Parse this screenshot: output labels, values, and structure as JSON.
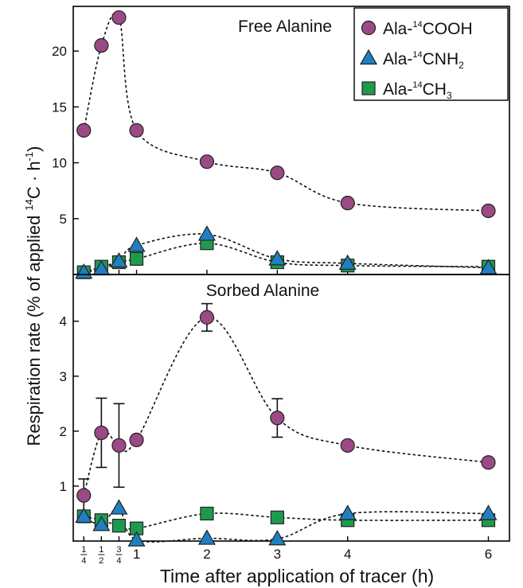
{
  "figure": {
    "ylabel_main": "Respiration rate (% of applied ",
    "ylabel_iso": "14",
    "ylabel_tail": "C · h",
    "ylabel_exp": "-1",
    "ylabel_close": ")",
    "xlabel": "Time after application of tracer (h)"
  },
  "legend": {
    "placement": "top-right",
    "items": [
      {
        "prefix": "Ala-",
        "iso": "14",
        "main": "COOH",
        "sub": "",
        "marker": "circle",
        "color": "#9b4a85"
      },
      {
        "prefix": "Ala-",
        "iso": "14",
        "main": "CNH",
        "sub": "2",
        "marker": "triangle",
        "color": "#1f7fc0"
      },
      {
        "prefix": "Ala-",
        "iso": "14",
        "main": "CH",
        "sub": "3",
        "marker": "square",
        "color": "#1e9a4d"
      }
    ]
  },
  "x_ticks": [
    {
      "value": 0.25,
      "kind": "fraction",
      "num": "1",
      "den": "4"
    },
    {
      "value": 0.5,
      "kind": "fraction",
      "num": "1",
      "den": "2"
    },
    {
      "value": 0.75,
      "kind": "fraction",
      "num": "3",
      "den": "4"
    },
    {
      "value": 1,
      "kind": "text",
      "label": "1"
    },
    {
      "value": 2,
      "kind": "text",
      "label": "2"
    },
    {
      "value": 3,
      "kind": "text",
      "label": "3"
    },
    {
      "value": 4,
      "kind": "text",
      "label": "4"
    },
    {
      "value": 6,
      "kind": "text",
      "label": "6"
    }
  ],
  "chart_data": [
    {
      "type": "scatter",
      "title": "Free Alanine",
      "xlim": [
        0.1,
        6.3
      ],
      "ylim": [
        0,
        24
      ],
      "yticks": [
        5,
        10,
        15,
        20
      ],
      "grid": false,
      "series": [
        {
          "name": "Ala-14COOH",
          "marker": "circle",
          "color": "#9b4a85",
          "x": [
            0.25,
            0.5,
            0.75,
            1,
            2,
            3,
            4,
            6
          ],
          "y": [
            12.9,
            20.5,
            23.0,
            12.9,
            10.1,
            9.1,
            6.4,
            5.7
          ]
        },
        {
          "name": "Ala-14CNH2",
          "marker": "triangle",
          "color": "#1f7fc0",
          "x": [
            0.25,
            0.5,
            0.75,
            1,
            2,
            3,
            4,
            6
          ],
          "y": [
            0.2,
            0.5,
            1.2,
            2.6,
            3.6,
            1.4,
            1.0,
            0.6
          ]
        },
        {
          "name": "Ala-14CH3",
          "marker": "square",
          "color": "#1e9a4d",
          "x": [
            0.25,
            0.5,
            0.75,
            1,
            2,
            3,
            4,
            6
          ],
          "y": [
            0.2,
            0.7,
            1.1,
            1.4,
            2.8,
            1.1,
            0.8,
            0.7
          ]
        }
      ]
    },
    {
      "type": "scatter",
      "title": "Sorbed Alanine",
      "xlim": [
        0.1,
        6.3
      ],
      "ylim": [
        0,
        4.85
      ],
      "yticks": [
        1,
        2,
        3,
        4
      ],
      "grid": false,
      "series": [
        {
          "name": "Ala-14COOH",
          "marker": "circle",
          "color": "#9b4a85",
          "x": [
            0.25,
            0.5,
            0.75,
            1,
            2,
            3,
            4,
            6
          ],
          "y": [
            0.83,
            1.97,
            1.74,
            1.84,
            4.07,
            2.24,
            1.74,
            1.43
          ],
          "error": [
            0.3,
            0.63,
            0.76,
            0,
            0.25,
            0.35,
            0,
            0
          ]
        },
        {
          "name": "Ala-14CNH2",
          "marker": "triangle",
          "color": "#1f7fc0",
          "x": [
            0.25,
            0.5,
            0.75,
            1,
            2,
            3,
            4,
            6
          ],
          "y": [
            0.45,
            0.3,
            0.6,
            0.02,
            0.05,
            0.04,
            0.5,
            0.5
          ]
        },
        {
          "name": "Ala-14CH3",
          "marker": "square",
          "color": "#1e9a4d",
          "x": [
            0.25,
            0.5,
            0.75,
            1,
            2,
            3,
            4,
            6
          ],
          "y": [
            0.45,
            0.38,
            0.28,
            0.23,
            0.5,
            0.43,
            0.38,
            0.38
          ]
        }
      ]
    }
  ]
}
